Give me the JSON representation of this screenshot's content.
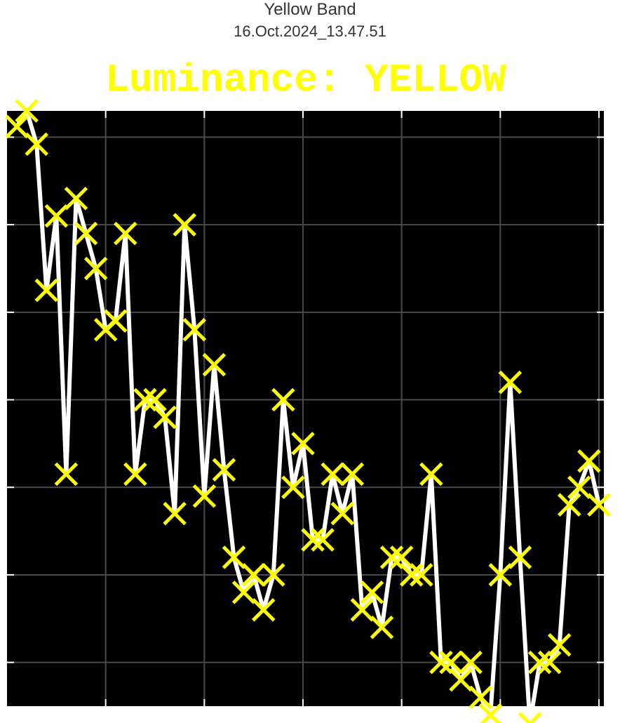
{
  "header": {
    "line1": "Yellow Band",
    "line2": "16.Oct.2024_13.47.51"
  },
  "chart_data": {
    "type": "line",
    "title": "Luminance: YELLOW",
    "xlabel": "",
    "ylabel": "",
    "xlim": [
      0,
      60.5
    ],
    "ylim": [
      0.5,
      7.3
    ],
    "xticks": [
      10,
      20,
      30,
      40,
      50,
      60
    ],
    "yticks": [
      1,
      2,
      3,
      4,
      5,
      6,
      7
    ],
    "grid": true,
    "background": "#000000",
    "line_color": "#ffffff",
    "marker": "x",
    "marker_color": "#ffff00",
    "x": [
      1,
      2,
      3,
      4,
      5,
      6,
      7,
      8,
      9,
      10,
      11,
      12,
      13,
      14,
      15,
      16,
      17,
      18,
      19,
      20,
      21,
      22,
      23,
      24,
      25,
      26,
      27,
      28,
      29,
      30,
      31,
      32,
      33,
      34,
      35,
      36,
      37,
      38,
      39,
      40,
      41,
      42,
      43,
      44,
      45,
      46,
      47,
      48,
      49,
      50,
      51,
      52,
      53,
      54,
      55,
      56,
      57,
      58,
      59,
      60
    ],
    "series": [
      {
        "values": [
          7.12,
          7.3,
          6.92,
          5.25,
          6.1,
          3.15,
          6.3,
          5.9,
          5.5,
          4.8,
          4.9,
          5.9,
          3.15,
          4.0,
          4.0,
          3.8,
          2.7,
          6.0,
          4.8,
          2.9,
          4.4,
          3.2,
          2.2,
          1.8,
          2.0,
          1.6,
          2.0,
          4.0,
          3.0,
          3.5,
          2.4,
          2.4,
          3.15,
          2.7,
          3.15,
          1.6,
          1.8,
          1.4,
          2.2,
          2.2,
          2.0,
          2.0,
          3.15,
          1.0,
          1.0,
          0.8,
          1.0,
          0.6,
          0.4,
          2.0,
          4.2,
          2.2,
          0.3,
          1.0,
          1.0,
          1.2,
          2.8,
          3.0,
          3.3,
          2.8
        ]
      }
    ],
    "series_tail_note": "",
    "extra_points": []
  }
}
